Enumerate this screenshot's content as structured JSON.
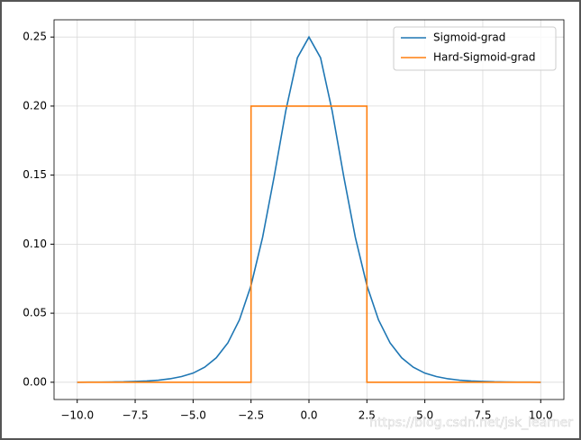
{
  "chart_data": {
    "type": "line",
    "grid": true,
    "legend": "upper right",
    "xlim": [
      -11,
      11
    ],
    "ylim": [
      -0.0125,
      0.2625
    ],
    "xticks": [
      {
        "value": -10,
        "label": "−10.0"
      },
      {
        "value": -7.5,
        "label": "−7.5"
      },
      {
        "value": -5,
        "label": "−5.0"
      },
      {
        "value": -2.5,
        "label": "−2.5"
      },
      {
        "value": 0,
        "label": "0.0"
      },
      {
        "value": 2.5,
        "label": "2.5"
      },
      {
        "value": 5,
        "label": "5.0"
      },
      {
        "value": 7.5,
        "label": "7.5"
      },
      {
        "value": 10,
        "label": "10.0"
      }
    ],
    "yticks": [
      {
        "value": 0,
        "label": "0.00"
      },
      {
        "value": 0.05,
        "label": "0.05"
      },
      {
        "value": 0.1,
        "label": "0.10"
      },
      {
        "value": 0.15,
        "label": "0.15"
      },
      {
        "value": 0.2,
        "label": "0.20"
      },
      {
        "value": 0.25,
        "label": "0.25"
      }
    ],
    "series": [
      {
        "name": "Sigmoid-grad",
        "color": "#1f77b4",
        "x": [
          -10,
          -9.5,
          -9,
          -8.5,
          -8,
          -7.5,
          -7,
          -6.5,
          -6,
          -5.5,
          -5,
          -4.5,
          -4,
          -3.5,
          -3,
          -2.5,
          -2,
          -1.5,
          -1,
          -0.5,
          0,
          0.5,
          1,
          1.5,
          2,
          2.5,
          3,
          3.5,
          4,
          4.5,
          5,
          5.5,
          6,
          6.5,
          7,
          7.5,
          8,
          8.5,
          9,
          9.5,
          10
        ],
        "values": [
          0,
          0.0001,
          0.0001,
          0.0002,
          0.0003,
          0.0006,
          0.0009,
          0.0015,
          0.0025,
          0.0041,
          0.0066,
          0.0109,
          0.0177,
          0.0285,
          0.0452,
          0.0701,
          0.105,
          0.1491,
          0.1966,
          0.235,
          0.25,
          0.235,
          0.1966,
          0.1491,
          0.105,
          0.0701,
          0.0452,
          0.0285,
          0.0177,
          0.0109,
          0.0066,
          0.0041,
          0.0025,
          0.0015,
          0.0009,
          0.0006,
          0.0003,
          0.0002,
          0.0001,
          0.0001,
          0
        ]
      },
      {
        "name": "Hard-Sigmoid-grad",
        "color": "#ff7f0e",
        "x": [
          -10,
          -2.5,
          -2.5,
          2.5,
          2.5,
          10
        ],
        "values": [
          0,
          0,
          0.2,
          0.2,
          0,
          0
        ]
      }
    ],
    "watermark": "https://blog.csdn.net/jsk_learner"
  }
}
